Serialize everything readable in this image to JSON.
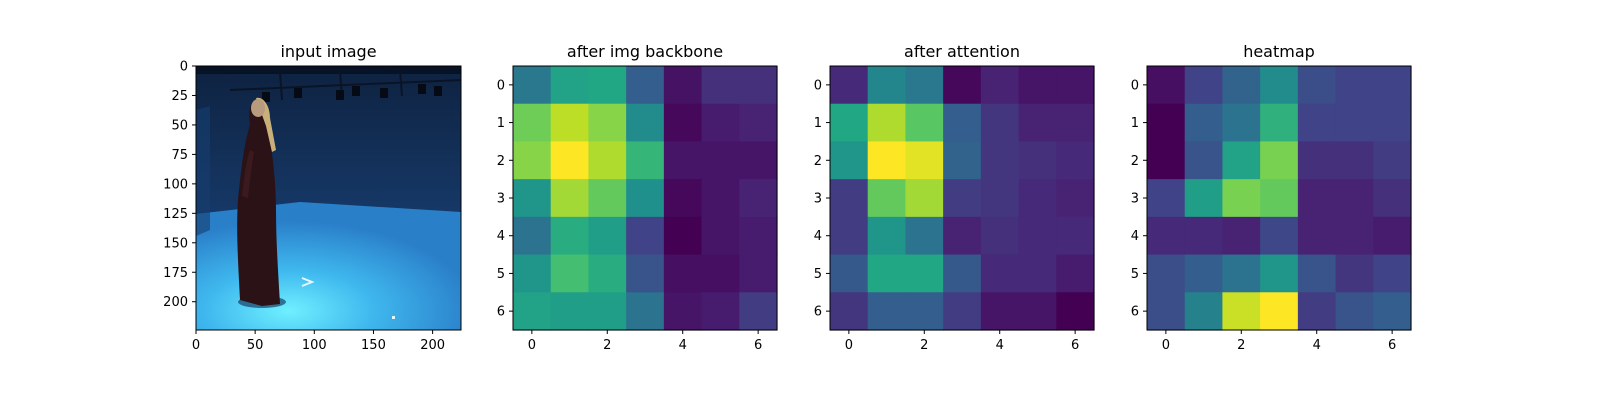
{
  "chart_data": [
    {
      "type": "image",
      "title": "input image",
      "xlabel": "",
      "ylabel": "",
      "xlim": [
        0,
        224
      ],
      "ylim": [
        224,
        0
      ],
      "xticks": [
        0,
        50,
        100,
        150,
        200
      ],
      "yticks": [
        0,
        25,
        50,
        75,
        100,
        125,
        150,
        175,
        200
      ],
      "content": "person-standing-in-blue-motion-capture-room"
    },
    {
      "type": "heatmap",
      "title": "after img backbone",
      "xlabel": "",
      "ylabel": "",
      "xticks": [
        0,
        2,
        4,
        6
      ],
      "yticks": [
        0,
        1,
        2,
        3,
        4,
        5,
        6
      ],
      "colormap": "viridis",
      "values": [
        [
          0.4,
          0.58,
          0.6,
          0.3,
          0.05,
          0.14,
          0.14
        ],
        [
          0.78,
          0.9,
          0.82,
          0.48,
          0.02,
          0.08,
          0.1
        ],
        [
          0.82,
          1.0,
          0.88,
          0.66,
          0.06,
          0.06,
          0.06
        ],
        [
          0.52,
          0.86,
          0.76,
          0.5,
          0.02,
          0.06,
          0.1
        ],
        [
          0.38,
          0.62,
          0.56,
          0.2,
          0.0,
          0.06,
          0.08
        ],
        [
          0.52,
          0.7,
          0.62,
          0.26,
          0.04,
          0.04,
          0.08
        ],
        [
          0.58,
          0.56,
          0.56,
          0.38,
          0.06,
          0.08,
          0.18
        ]
      ]
    },
    {
      "type": "heatmap",
      "title": "after attention",
      "xlabel": "",
      "ylabel": "",
      "xticks": [
        0,
        2,
        4,
        6
      ],
      "yticks": [
        0,
        1,
        2,
        3,
        4,
        5,
        6
      ],
      "colormap": "viridis",
      "values": [
        [
          0.12,
          0.46,
          0.4,
          0.02,
          0.1,
          0.06,
          0.06
        ],
        [
          0.6,
          0.88,
          0.74,
          0.3,
          0.16,
          0.1,
          0.1
        ],
        [
          0.52,
          1.0,
          0.96,
          0.32,
          0.16,
          0.14,
          0.12
        ],
        [
          0.18,
          0.76,
          0.86,
          0.18,
          0.16,
          0.12,
          0.1
        ],
        [
          0.18,
          0.52,
          0.38,
          0.1,
          0.14,
          0.12,
          0.12
        ],
        [
          0.28,
          0.6,
          0.6,
          0.28,
          0.12,
          0.12,
          0.08
        ],
        [
          0.16,
          0.3,
          0.3,
          0.18,
          0.06,
          0.06,
          0.0
        ]
      ]
    },
    {
      "type": "heatmap",
      "title": "heatmap",
      "xlabel": "",
      "ylabel": "",
      "xticks": [
        0,
        2,
        4,
        6
      ],
      "yticks": [
        0,
        1,
        2,
        3,
        4,
        5,
        6
      ],
      "colormap": "viridis",
      "values": [
        [
          0.04,
          0.2,
          0.32,
          0.48,
          0.24,
          0.2,
          0.2
        ],
        [
          0.0,
          0.3,
          0.38,
          0.64,
          0.2,
          0.2,
          0.2
        ],
        [
          0.0,
          0.26,
          0.58,
          0.8,
          0.14,
          0.14,
          0.18
        ],
        [
          0.2,
          0.56,
          0.8,
          0.76,
          0.1,
          0.1,
          0.14
        ],
        [
          0.12,
          0.12,
          0.1,
          0.22,
          0.1,
          0.1,
          0.08
        ],
        [
          0.24,
          0.3,
          0.38,
          0.52,
          0.26,
          0.16,
          0.2
        ],
        [
          0.24,
          0.44,
          0.92,
          1.0,
          0.18,
          0.26,
          0.3
        ]
      ]
    }
  ]
}
